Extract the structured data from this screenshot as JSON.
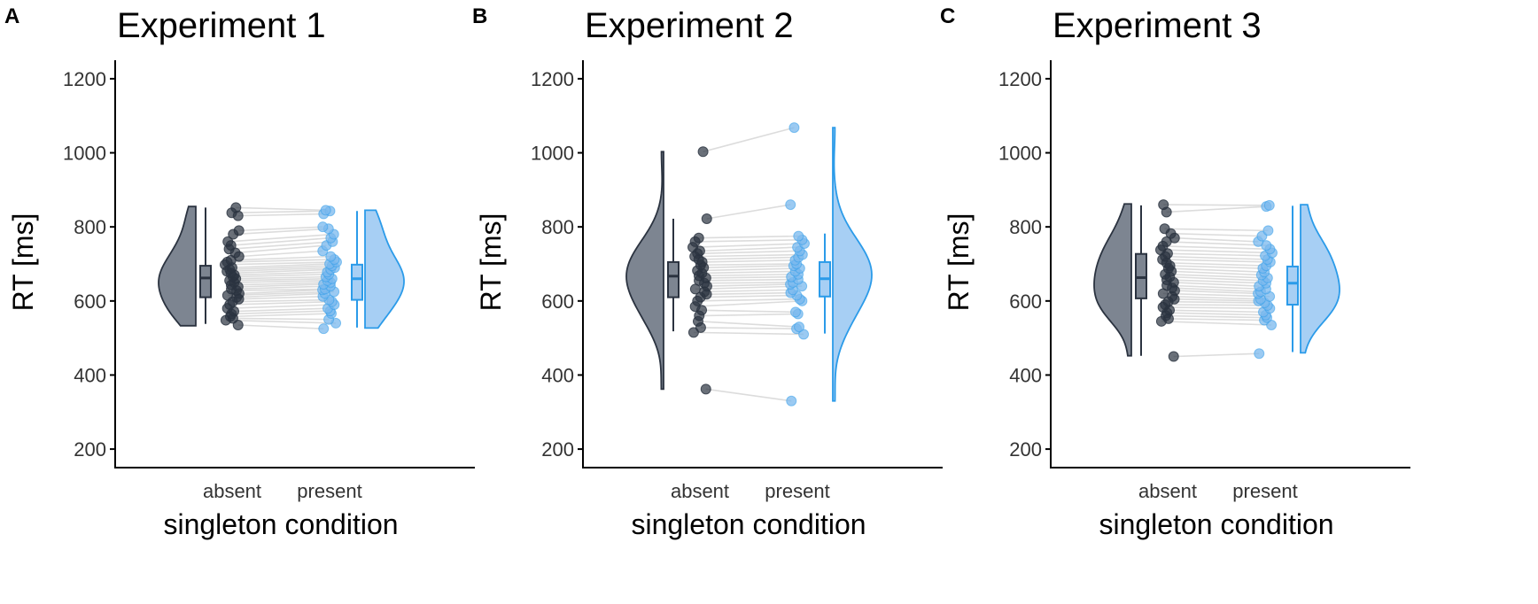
{
  "figure": {
    "y_axis_label": "RT [ms]",
    "x_axis_label": "singleton condition",
    "y_ticks": [
      "200",
      "400",
      "600",
      "800",
      "1000",
      "1200"
    ],
    "colors": {
      "absent_dark": "#2b3340",
      "absent_fill": "#7d8591",
      "present_line": "#2b9be9",
      "present_fill": "#a7cff4",
      "present_point": "#7ab8ee",
      "pair_line": "#dcdcdc",
      "axis": "#000000"
    }
  },
  "chart_data": [
    {
      "panel_letter": "A",
      "type": "scatter",
      "title": "Experiment 1",
      "xlabel": "singleton condition",
      "ylabel": "RT [ms]",
      "categories": [
        "absent",
        "present"
      ],
      "ylim": [
        150,
        1250
      ],
      "y_ticks": [
        200,
        400,
        600,
        800,
        1000,
        1200
      ],
      "grid": false,
      "box": {
        "absent": {
          "min": 538,
          "q1": 610,
          "median": 662,
          "q3": 695,
          "max": 852
        },
        "present": {
          "min": 528,
          "q1": 603,
          "median": 660,
          "q3": 698,
          "max": 843
        }
      },
      "density_range": {
        "absent": [
          533,
          855
        ],
        "present": [
          527,
          845
        ]
      },
      "pairs": [
        [
          535,
          525
        ],
        [
          548,
          540
        ],
        [
          553,
          550
        ],
        [
          558,
          566
        ],
        [
          565,
          573
        ],
        [
          572,
          580
        ],
        [
          580,
          590
        ],
        [
          590,
          598
        ],
        [
          598,
          603
        ],
        [
          605,
          612
        ],
        [
          610,
          620
        ],
        [
          615,
          625
        ],
        [
          620,
          630
        ],
        [
          628,
          632
        ],
        [
          632,
          640
        ],
        [
          638,
          645
        ],
        [
          643,
          650
        ],
        [
          650,
          655
        ],
        [
          655,
          660
        ],
        [
          660,
          665
        ],
        [
          665,
          672
        ],
        [
          670,
          678
        ],
        [
          675,
          685
        ],
        [
          680,
          690
        ],
        [
          685,
          695
        ],
        [
          690,
          700
        ],
        [
          698,
          705
        ],
        [
          705,
          712
        ],
        [
          710,
          720
        ],
        [
          720,
          735
        ],
        [
          730,
          750
        ],
        [
          740,
          760
        ],
        [
          750,
          770
        ],
        [
          760,
          780
        ],
        [
          780,
          795
        ],
        [
          790,
          800
        ],
        [
          830,
          835
        ],
        [
          838,
          843
        ],
        [
          852,
          845
        ]
      ]
    },
    {
      "panel_letter": "B",
      "type": "scatter",
      "title": "Experiment 2",
      "xlabel": "singleton condition",
      "ylabel": "RT [ms]",
      "categories": [
        "absent",
        "present"
      ],
      "ylim": [
        150,
        1250
      ],
      "y_ticks": [
        200,
        400,
        600,
        800,
        1000,
        1200
      ],
      "grid": false,
      "box": {
        "absent": {
          "min": 518,
          "q1": 610,
          "median": 667,
          "q3": 705,
          "max": 822
        },
        "present": {
          "min": 512,
          "q1": 612,
          "median": 660,
          "q3": 705,
          "max": 782
        }
      },
      "density_range": {
        "absent": [
          362,
          1003
        ],
        "present": [
          330,
          1068
        ]
      },
      "pairs": [
        [
          362,
          330
        ],
        [
          515,
          510
        ],
        [
          528,
          525
        ],
        [
          545,
          530
        ],
        [
          560,
          565
        ],
        [
          575,
          570
        ],
        [
          585,
          600
        ],
        [
          600,
          605
        ],
        [
          610,
          615
        ],
        [
          618,
          622
        ],
        [
          625,
          630
        ],
        [
          632,
          640
        ],
        [
          640,
          645
        ],
        [
          648,
          650
        ],
        [
          655,
          658
        ],
        [
          662,
          665
        ],
        [
          668,
          672
        ],
        [
          675,
          680
        ],
        [
          682,
          688
        ],
        [
          690,
          695
        ],
        [
          697,
          700
        ],
        [
          705,
          710
        ],
        [
          712,
          718
        ],
        [
          720,
          725
        ],
        [
          728,
          735
        ],
        [
          735,
          745
        ],
        [
          745,
          755
        ],
        [
          760,
          765
        ],
        [
          770,
          775
        ],
        [
          822,
          860
        ],
        [
          1003,
          1068
        ]
      ]
    },
    {
      "panel_letter": "C",
      "type": "scatter",
      "title": "Experiment 3",
      "xlabel": "singleton condition",
      "ylabel": "RT [ms]",
      "categories": [
        "absent",
        "present"
      ],
      "ylim": [
        150,
        1250
      ],
      "y_ticks": [
        200,
        400,
        600,
        800,
        1000,
        1200
      ],
      "grid": false,
      "box": {
        "absent": {
          "min": 452,
          "q1": 607,
          "median": 663,
          "q3": 727,
          "max": 858
        },
        "present": {
          "min": 462,
          "q1": 590,
          "median": 648,
          "q3": 693,
          "max": 857
        }
      },
      "density_range": {
        "absent": [
          452,
          862
        ],
        "present": [
          460,
          860
        ]
      },
      "pairs": [
        [
          450,
          458
        ],
        [
          545,
          535
        ],
        [
          552,
          548
        ],
        [
          560,
          555
        ],
        [
          568,
          562
        ],
        [
          575,
          570
        ],
        [
          583,
          580
        ],
        [
          590,
          588
        ],
        [
          598,
          595
        ],
        [
          605,
          600
        ],
        [
          612,
          605
        ],
        [
          620,
          612
        ],
        [
          628,
          620
        ],
        [
          635,
          625
        ],
        [
          642,
          632
        ],
        [
          650,
          640
        ],
        [
          657,
          648
        ],
        [
          665,
          655
        ],
        [
          672,
          662
        ],
        [
          680,
          670
        ],
        [
          688,
          678
        ],
        [
          695,
          688
        ],
        [
          703,
          695
        ],
        [
          712,
          705
        ],
        [
          720,
          712
        ],
        [
          728,
          722
        ],
        [
          738,
          730
        ],
        [
          748,
          740
        ],
        [
          760,
          750
        ],
        [
          770,
          760
        ],
        [
          782,
          775
        ],
        [
          795,
          790
        ],
        [
          840,
          855
        ],
        [
          860,
          858
        ]
      ]
    }
  ]
}
